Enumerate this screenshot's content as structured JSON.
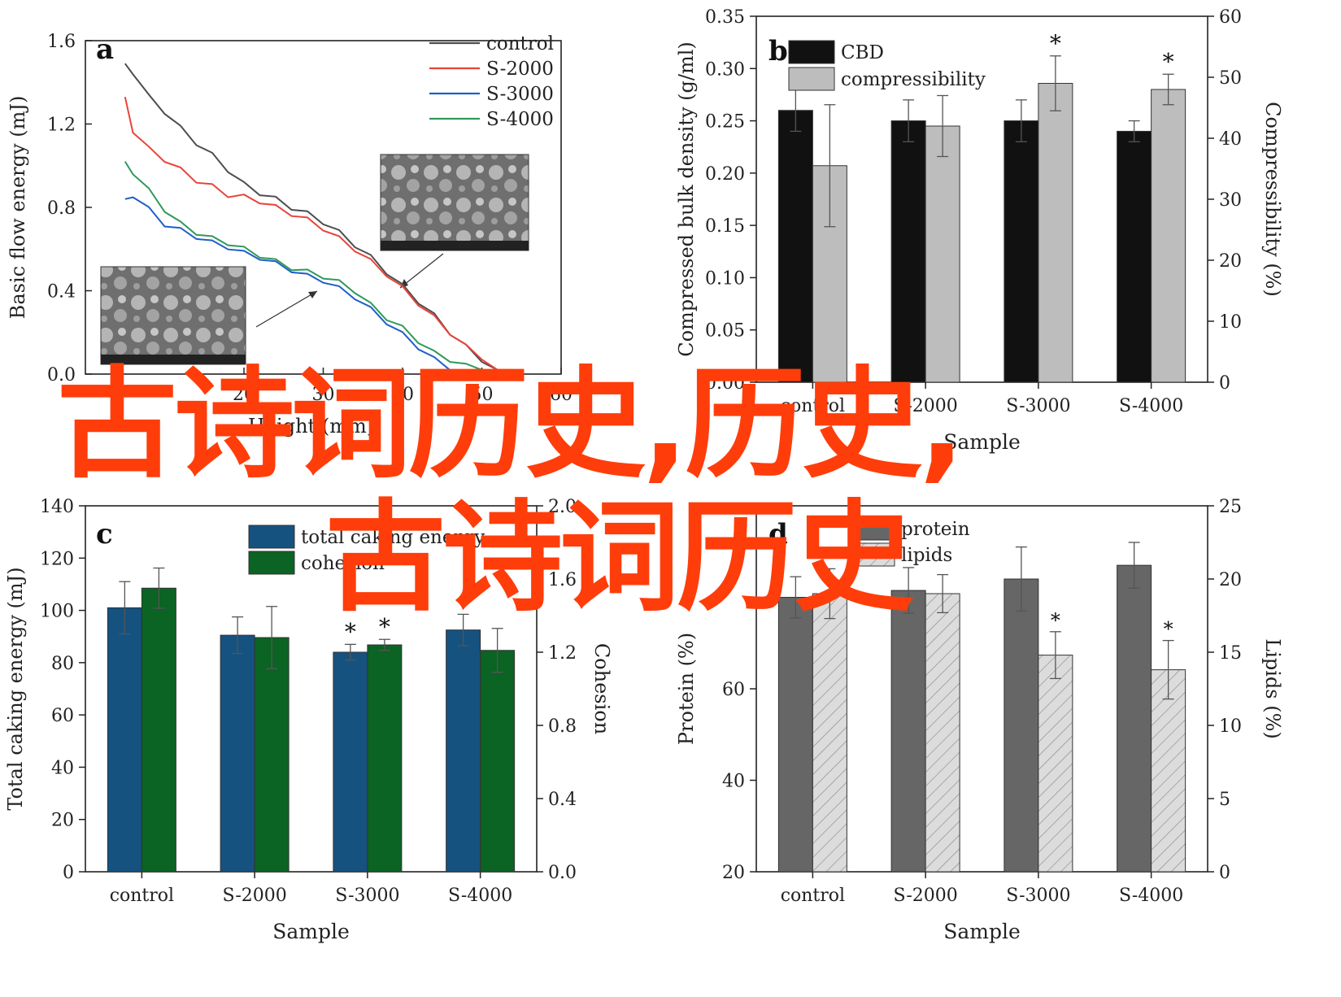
{
  "watermark": {
    "line1": "古诗词历史,历史,",
    "line2": "古诗词历史",
    "color": "#ff3d0a"
  },
  "chart_data": [
    {
      "panel": "a",
      "type": "line",
      "xlabel": "Height (mm)",
      "ylabel": "Basic flow energy (mJ)",
      "xlim": [
        0,
        60
      ],
      "ylim": [
        0.0,
        1.6
      ],
      "xticks": [
        20,
        30,
        40,
        50,
        60
      ],
      "yticks": [
        "0.0",
        "0.4",
        "0.8",
        "1.2",
        "1.6"
      ],
      "legend_position": "top-right",
      "series": [
        {
          "name": "control",
          "color": "#4d4d4d",
          "x": [
            5,
            6,
            8,
            10,
            12,
            14,
            16,
            18,
            20,
            22,
            24,
            26,
            28,
            30,
            32,
            34,
            36,
            38,
            40,
            42,
            44,
            46,
            48,
            50,
            52,
            54
          ],
          "y": [
            1.49,
            1.45,
            1.33,
            1.26,
            1.18,
            1.11,
            1.05,
            0.98,
            0.91,
            0.87,
            0.84,
            0.8,
            0.77,
            0.73,
            0.68,
            0.62,
            0.56,
            0.49,
            0.42,
            0.35,
            0.28,
            0.2,
            0.13,
            0.07,
            0.02,
            0.02
          ]
        },
        {
          "name": "S-2000",
          "color": "#e8443a",
          "x": [
            5,
            6,
            8,
            10,
            12,
            14,
            16,
            18,
            20,
            22,
            24,
            26,
            28,
            30,
            32,
            34,
            36,
            38,
            40,
            42,
            44,
            46,
            48,
            50,
            52
          ],
          "y": [
            1.33,
            1.17,
            1.08,
            1.03,
            0.98,
            0.93,
            0.9,
            0.86,
            0.85,
            0.83,
            0.8,
            0.77,
            0.74,
            0.7,
            0.65,
            0.6,
            0.54,
            0.48,
            0.41,
            0.34,
            0.27,
            0.2,
            0.13,
            0.07,
            0.02
          ]
        },
        {
          "name": "S-3000",
          "color": "#1f5fc9",
          "x": [
            5,
            6,
            8,
            10,
            12,
            14,
            16,
            18,
            20,
            22,
            24,
            26,
            28,
            30,
            32,
            34,
            36,
            38,
            40,
            42,
            44,
            46,
            48,
            49
          ],
          "y": [
            0.84,
            0.86,
            0.79,
            0.72,
            0.69,
            0.66,
            0.63,
            0.61,
            0.58,
            0.56,
            0.53,
            0.5,
            0.47,
            0.45,
            0.41,
            0.37,
            0.31,
            0.25,
            0.19,
            0.13,
            0.07,
            0.03,
            0.0,
            0.0
          ]
        },
        {
          "name": "S-4000",
          "color": "#2e9a5a",
          "x": [
            5,
            6,
            8,
            10,
            12,
            14,
            16,
            18,
            20,
            22,
            24,
            26,
            28,
            30,
            32,
            34,
            36,
            38,
            40,
            42,
            44,
            46,
            48,
            50
          ],
          "y": [
            1.02,
            0.97,
            0.88,
            0.79,
            0.72,
            0.68,
            0.65,
            0.63,
            0.6,
            0.57,
            0.54,
            0.51,
            0.49,
            0.47,
            0.44,
            0.4,
            0.33,
            0.27,
            0.22,
            0.16,
            0.1,
            0.07,
            0.05,
            0.02
          ]
        }
      ]
    },
    {
      "panel": "b",
      "type": "bar",
      "xlabel": "Sample",
      "ylabel": "Compressed bulk density (g/ml)",
      "y2label": "Compressibility (%)",
      "categories": [
        "control",
        "S-2000",
        "S-3000",
        "S-4000"
      ],
      "ylim": [
        0,
        0.35
      ],
      "y2lim": [
        0,
        60
      ],
      "yticks": [
        "0.00",
        "0.05",
        "0.10",
        "0.15",
        "0.20",
        "0.25",
        "0.30",
        "0.35"
      ],
      "y2ticks": [
        "0",
        "10",
        "20",
        "30",
        "40",
        "50",
        "60"
      ],
      "legend_position": "top-left",
      "series": [
        {
          "name": "CBD",
          "axis": "left",
          "color": "#111111",
          "values": [
            0.26,
            0.25,
            0.25,
            0.24
          ],
          "errors": [
            0.02,
            0.02,
            0.02,
            0.01
          ],
          "stars": [
            false,
            false,
            false,
            false
          ]
        },
        {
          "name": "compressibility",
          "axis": "right",
          "color": "#bdbdbd",
          "values": [
            35.5,
            42.0,
            49.0,
            48.0
          ],
          "errors": [
            10.0,
            5.0,
            4.5,
            2.5
          ],
          "stars": [
            false,
            false,
            true,
            true
          ]
        }
      ]
    },
    {
      "panel": "c",
      "type": "bar",
      "xlabel": "Sample",
      "ylabel": "Total caking energy (mJ)",
      "y2label": "Cohesion",
      "categories": [
        "control",
        "S-2000",
        "S-3000",
        "S-4000"
      ],
      "ylim": [
        0,
        140
      ],
      "y2lim": [
        0,
        2.0
      ],
      "yticks": [
        "0",
        "20",
        "40",
        "60",
        "80",
        "100",
        "120",
        "140"
      ],
      "y2ticks": [
        "0.0",
        "0.4",
        "0.8",
        "1.2",
        "1.6",
        "2.0"
      ],
      "legend_position": "top-left",
      "series": [
        {
          "name": "total caking energy",
          "axis": "left",
          "color": "#15527f",
          "values": [
            101,
            90.5,
            84,
            92.5
          ],
          "errors": [
            10,
            7,
            3,
            6
          ],
          "stars": [
            false,
            false,
            true,
            false
          ]
        },
        {
          "name": "cohesion",
          "axis": "right",
          "color": "#0b6324",
          "values": [
            1.55,
            1.28,
            1.24,
            1.21
          ],
          "errors": [
            0.11,
            0.17,
            0.03,
            0.12
          ],
          "stars": [
            false,
            false,
            true,
            false
          ]
        }
      ]
    },
    {
      "panel": "d",
      "type": "bar",
      "xlabel": "Sample",
      "ylabel": "Protein (%)",
      "y2label": "Lipids (%)",
      "categories": [
        "control",
        "S-2000",
        "S-3000",
        "S-4000"
      ],
      "ylim": [
        20,
        100
      ],
      "y2lim": [
        0,
        25
      ],
      "yticks": [
        "20",
        "40",
        "60"
      ],
      "y2ticks": [
        "0",
        "5",
        "10",
        "15",
        "20",
        "25"
      ],
      "legend_position": "top-left",
      "series": [
        {
          "name": "protein",
          "axis": "left",
          "color": "#666666",
          "values": [
            80,
            81.5,
            84,
            87
          ],
          "errors": [
            4.5,
            5,
            7,
            5
          ],
          "stars": [
            false,
            false,
            false,
            false
          ]
        },
        {
          "name": "lipids",
          "axis": "right",
          "color": "#d9d9d9",
          "pattern": "hatch",
          "values": [
            19,
            19,
            14.8,
            13.8
          ],
          "errors": [
            1.7,
            1.3,
            1.6,
            2.0
          ],
          "stars": [
            false,
            false,
            true,
            true
          ]
        }
      ]
    }
  ]
}
